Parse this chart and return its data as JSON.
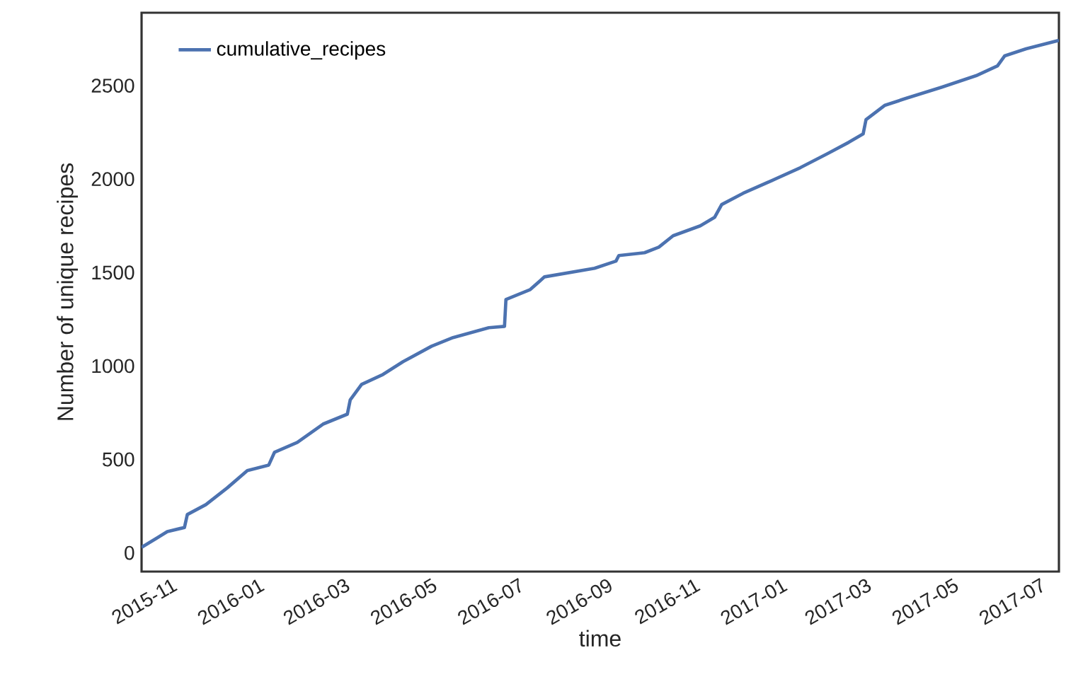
{
  "chart_data": {
    "type": "line",
    "xlabel": "time",
    "ylabel": "Number of unique recipes",
    "x": [
      "2015-10-10",
      "2015-10-20",
      "2015-10-28",
      "2015-11-09",
      "2015-11-11",
      "2015-11-24",
      "2015-12-09",
      "2015-12-23",
      "2016-01-07",
      "2016-01-11",
      "2016-01-27",
      "2016-02-14",
      "2016-03-02",
      "2016-03-04",
      "2016-03-12",
      "2016-03-27",
      "2016-04-10",
      "2016-04-30",
      "2016-05-15",
      "2016-06-09",
      "2016-06-20",
      "2016-06-21",
      "2016-07-08",
      "2016-07-18",
      "2016-08-22",
      "2016-09-06",
      "2016-09-08",
      "2016-09-26",
      "2016-10-06",
      "2016-10-16",
      "2016-11-04",
      "2016-11-14",
      "2016-11-19",
      "2016-12-04",
      "2016-12-24",
      "2017-01-13",
      "2017-02-01",
      "2017-02-16",
      "2017-02-26",
      "2017-02-28",
      "2017-03-13",
      "2017-03-28",
      "2017-04-22",
      "2017-05-16",
      "2017-05-31",
      "2017-06-05",
      "2017-06-20",
      "2017-07-13"
    ],
    "series": [
      {
        "name": "cumulative_recipes",
        "color": "#4c72b0",
        "values": [
          30,
          76,
          114,
          136,
          205,
          258,
          348,
          440,
          470,
          538,
          591,
          689,
          742,
          818,
          902,
          955,
          1023,
          1106,
          1152,
          1205,
          1212,
          1356,
          1409,
          1477,
          1523,
          1561,
          1591,
          1606,
          1636,
          1697,
          1750,
          1795,
          1864,
          1924,
          1992,
          2061,
          2136,
          2197,
          2242,
          2318,
          2394,
          2432,
          2492,
          2553,
          2606,
          2659,
          2697,
          2742
        ]
      }
    ],
    "xlim": [
      "2015-10-10",
      "2017-07-13"
    ],
    "xticks": [
      "2015-11",
      "2016-01",
      "2016-03",
      "2016-05",
      "2016-07",
      "2016-09",
      "2016-11",
      "2017-01",
      "2017-03",
      "2017-05",
      "2017-07"
    ],
    "ylim": [
      -100,
      2890
    ],
    "yticks": [
      0,
      500,
      1000,
      1500,
      2000,
      2500
    ],
    "legend": "top left",
    "grid": false,
    "marker": "none",
    "line_style": "solid"
  }
}
